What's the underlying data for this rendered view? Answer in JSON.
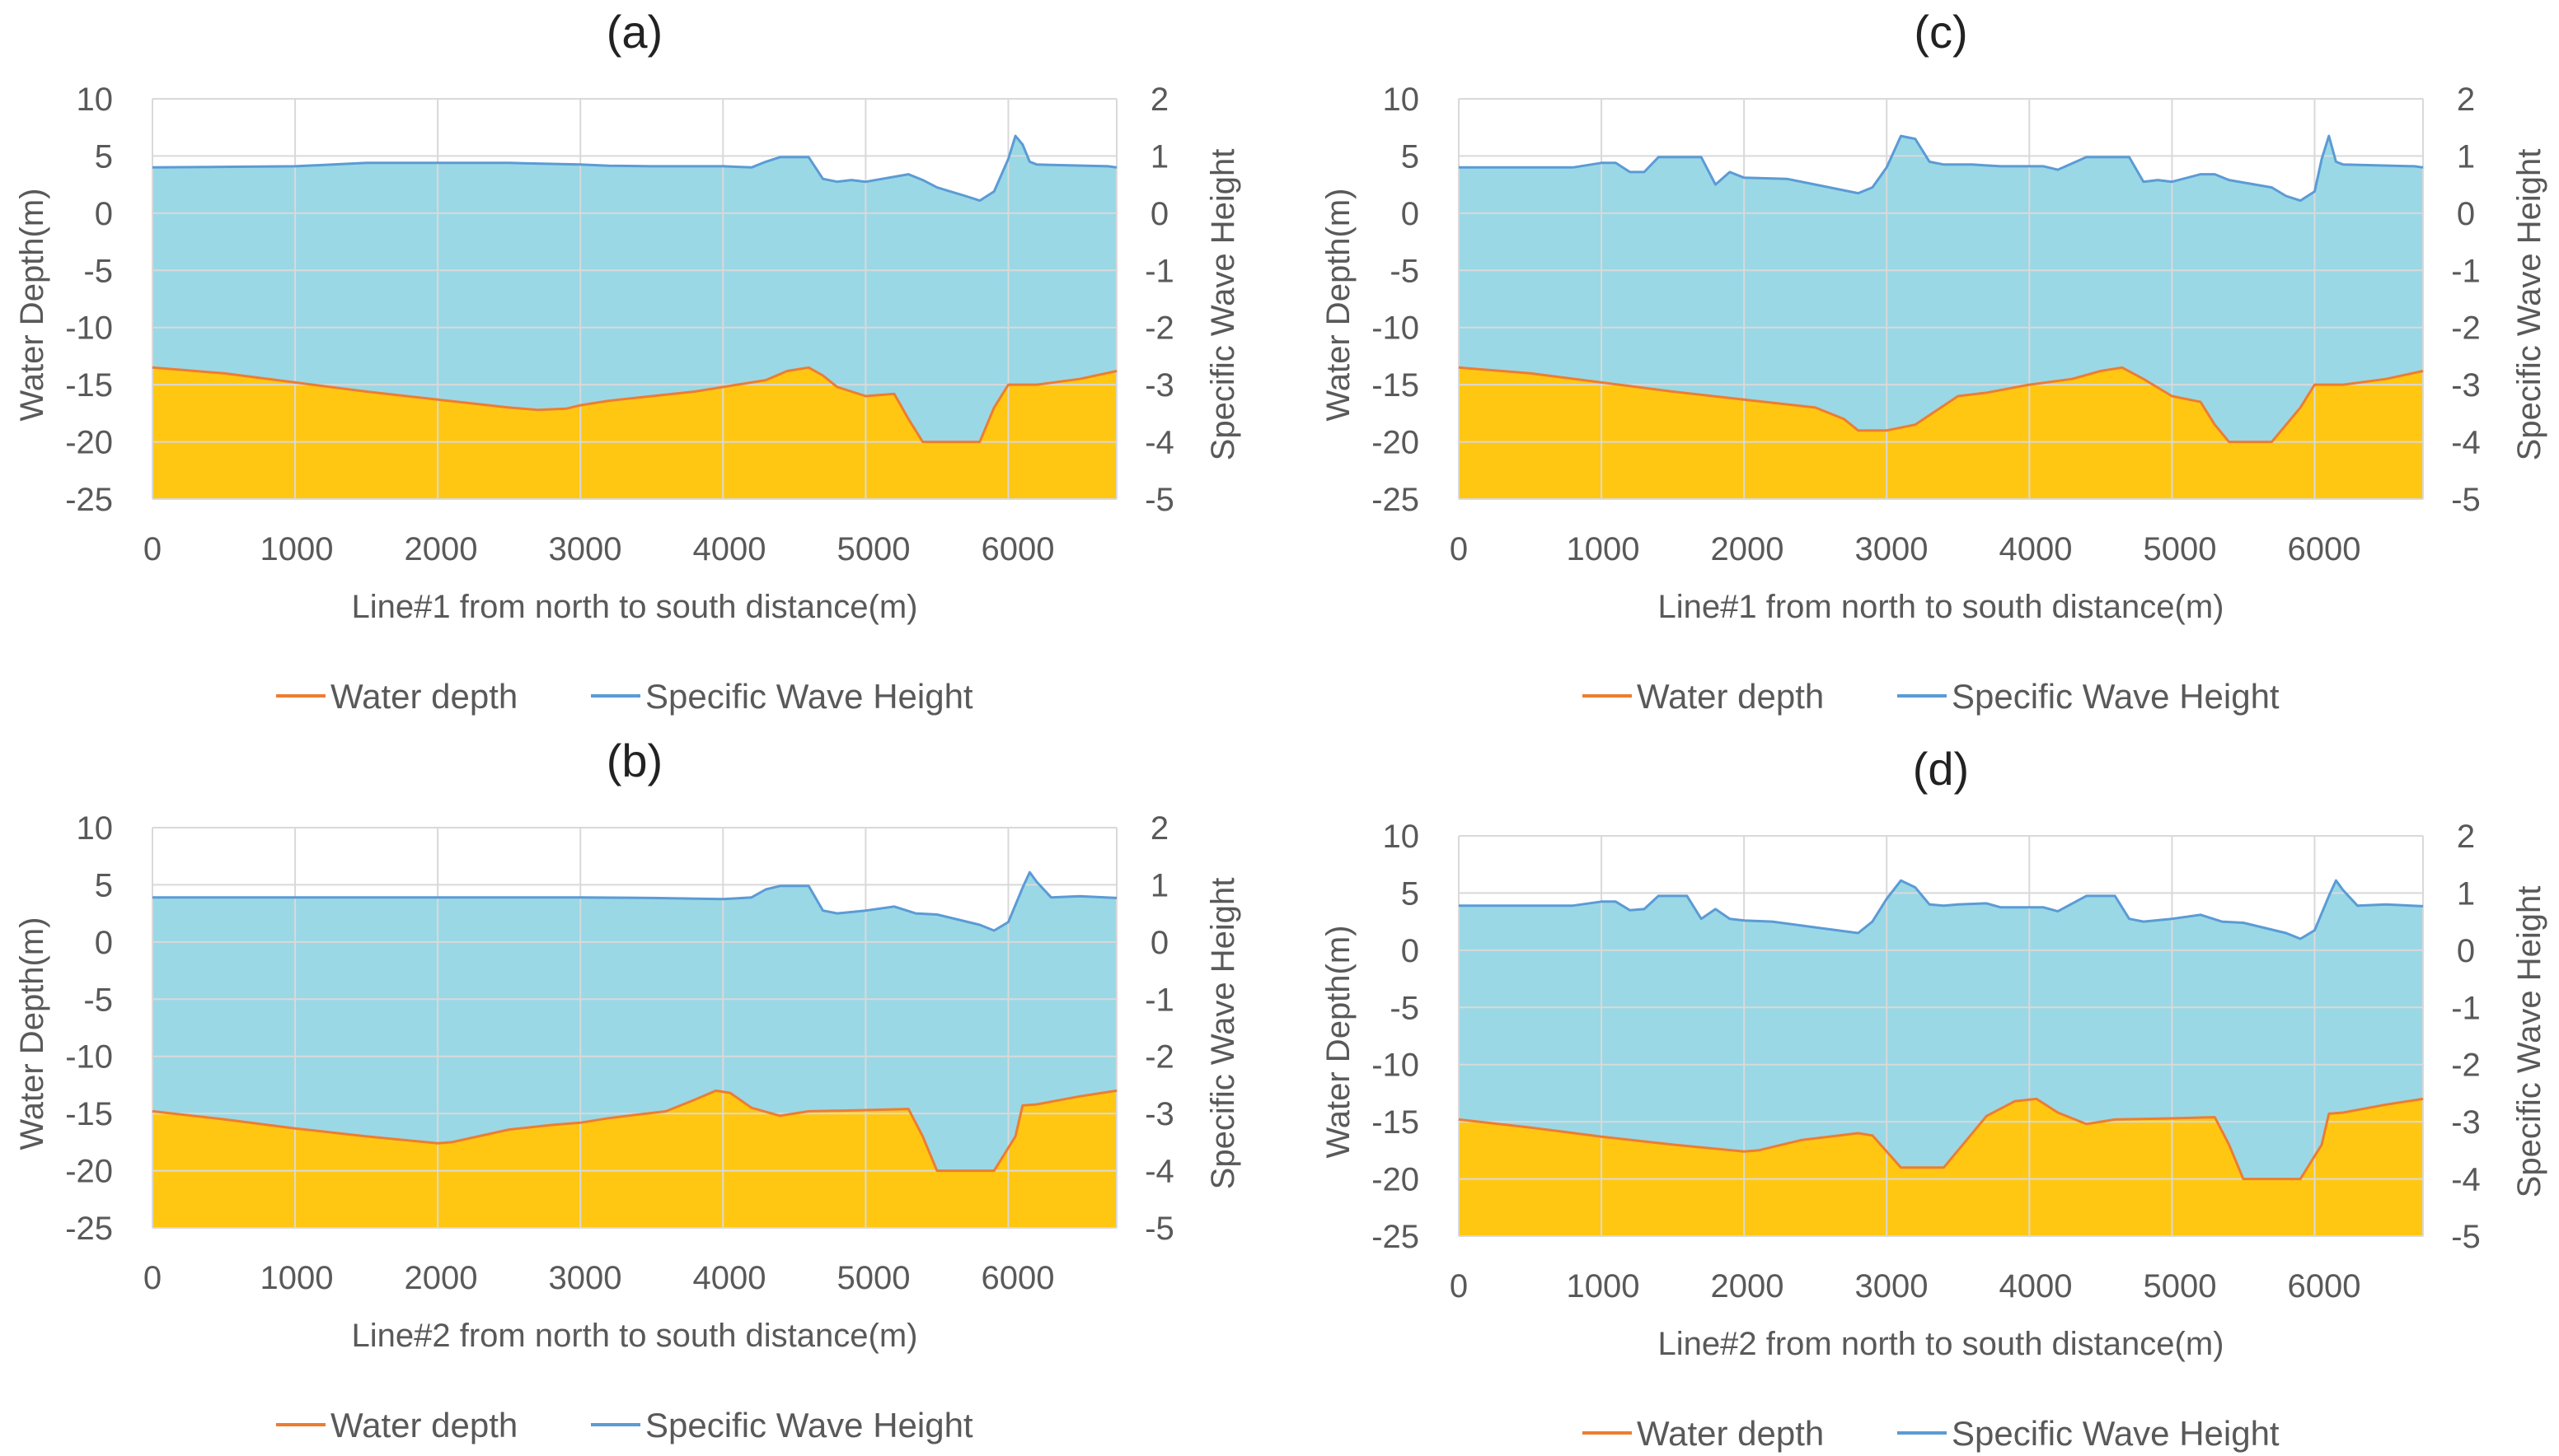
{
  "colors": {
    "water_depth_line": "#ED7D31",
    "wave_line": "#5B9BD5",
    "seabed_fill": "#FFC712",
    "water_fill": "#9AD8E6"
  },
  "chart_data": [
    {
      "type": "area",
      "panel": "(a)",
      "xlabel": "Line#1 from north to south distance(m)",
      "ylabel": "Water Depth(m)",
      "y2label": "Specific Wave Height",
      "xlim": [
        0,
        6760
      ],
      "ylim": [
        -25,
        10
      ],
      "y2lim": [
        -5,
        2
      ],
      "xticks": [
        "0",
        "1000",
        "2000",
        "3000",
        "4000",
        "5000",
        "6000"
      ],
      "yticks": [
        "10",
        "5",
        "0",
        "-5",
        "-10",
        "-15",
        "-20",
        "-25"
      ],
      "y2ticks": [
        "2",
        "1",
        "0",
        "-1",
        "-2",
        "-3",
        "-4",
        "-5"
      ],
      "grid": true,
      "legend": [
        "Water depth",
        "Specific Wave Height"
      ],
      "legend_position": "bottom",
      "series": [
        {
          "name": "Water depth",
          "axis": "left",
          "x": [
            0,
            500,
            1000,
            1500,
            2000,
            2500,
            2700,
            2900,
            3000,
            3200,
            3500,
            3800,
            4100,
            4300,
            4450,
            4600,
            4700,
            4800,
            5000,
            5200,
            5300,
            5400,
            5700,
            5800,
            5900,
            6000,
            6200,
            6500,
            6760
          ],
          "y": [
            -13.5,
            -14,
            -14.8,
            -15.6,
            -16.3,
            -17,
            -17.2,
            -17.1,
            -16.8,
            -16.4,
            -16,
            -15.6,
            -15,
            -14.6,
            -13.8,
            -13.5,
            -14.2,
            -15.2,
            -16,
            -15.8,
            -18,
            -20,
            -20,
            -20,
            -17,
            -15,
            -15,
            -14.5,
            -13.8
          ]
        },
        {
          "name": "Specific Wave Height",
          "axis": "right",
          "x": [
            0,
            1000,
            1500,
            2000,
            2500,
            3000,
            3200,
            3500,
            4000,
            4200,
            4300,
            4400,
            4600,
            4700,
            4800,
            4900,
            5000,
            5300,
            5400,
            5500,
            5700,
            5800,
            5900,
            6000,
            6050,
            6100,
            6150,
            6200,
            6700,
            6760
          ],
          "y": [
            0.8,
            0.82,
            0.88,
            0.88,
            0.88,
            0.85,
            0.83,
            0.82,
            0.82,
            0.8,
            0.9,
            0.98,
            0.98,
            0.6,
            0.55,
            0.58,
            0.55,
            0.68,
            0.58,
            0.45,
            0.3,
            0.22,
            0.38,
            0.95,
            1.35,
            1.2,
            0.9,
            0.85,
            0.82,
            0.8
          ]
        }
      ]
    },
    {
      "type": "area",
      "panel": "(b)",
      "xlabel": "Line#2 from north to south distance(m)",
      "ylabel": "Water Depth(m)",
      "y2label": "Specific Wave Height",
      "xlim": [
        0,
        6760
      ],
      "ylim": [
        -25,
        10
      ],
      "y2lim": [
        -5,
        2
      ],
      "xticks": [
        "0",
        "1000",
        "2000",
        "3000",
        "4000",
        "5000",
        "6000"
      ],
      "yticks": [
        "10",
        "5",
        "0",
        "-5",
        "-10",
        "-15",
        "-20",
        "-25"
      ],
      "y2ticks": [
        "2",
        "1",
        "0",
        "-1",
        "-2",
        "-3",
        "-4",
        "-5"
      ],
      "grid": true,
      "legend": [
        "Water depth",
        "Specific Wave Height"
      ],
      "legend_position": "bottom",
      "series": [
        {
          "name": "Water depth",
          "axis": "left",
          "x": [
            0,
            500,
            1000,
            1500,
            2000,
            2100,
            2500,
            2800,
            3000,
            3200,
            3600,
            3800,
            3950,
            4050,
            4200,
            4400,
            4600,
            5000,
            5300,
            5400,
            5500,
            5900,
            6050,
            6100,
            6200,
            6500,
            6760
          ],
          "y": [
            -14.8,
            -15.5,
            -16.3,
            -17,
            -17.6,
            -17.5,
            -16.4,
            -16,
            -15.8,
            -15.4,
            -14.8,
            -13.8,
            -13,
            -13.2,
            -14.5,
            -15.2,
            -14.8,
            -14.7,
            -14.6,
            -17,
            -20,
            -20,
            -17,
            -14.3,
            -14.2,
            -13.5,
            -13
          ]
        },
        {
          "name": "Specific Wave Height",
          "axis": "right",
          "x": [
            0,
            1000,
            2000,
            3000,
            3500,
            4000,
            4200,
            4300,
            4400,
            4600,
            4700,
            4800,
            5000,
            5200,
            5350,
            5500,
            5800,
            5900,
            6000,
            6100,
            6150,
            6200,
            6300,
            6500,
            6760
          ],
          "y": [
            0.78,
            0.78,
            0.78,
            0.78,
            0.77,
            0.75,
            0.78,
            0.92,
            0.98,
            0.98,
            0.55,
            0.5,
            0.55,
            0.62,
            0.5,
            0.48,
            0.3,
            0.2,
            0.35,
            0.95,
            1.22,
            1.05,
            0.78,
            0.8,
            0.77
          ]
        }
      ]
    },
    {
      "type": "area",
      "panel": "(c)",
      "xlabel": "Line#1 from north to south distance(m)",
      "ylabel": "Water Depth(m)",
      "y2label": "Specific Wave Height",
      "xlim": [
        0,
        6760
      ],
      "ylim": [
        -25,
        10
      ],
      "y2lim": [
        -5,
        2
      ],
      "xticks": [
        "0",
        "1000",
        "2000",
        "3000",
        "4000",
        "5000",
        "6000"
      ],
      "yticks": [
        "10",
        "5",
        "0",
        "-5",
        "-10",
        "-15",
        "-20",
        "-25"
      ],
      "y2ticks": [
        "2",
        "1",
        "0",
        "-1",
        "-2",
        "-3",
        "-4",
        "-5"
      ],
      "grid": true,
      "legend": [
        "Water depth",
        "Specific Wave Height"
      ],
      "legend_position": "bottom",
      "series": [
        {
          "name": "Water depth",
          "axis": "left",
          "x": [
            0,
            500,
            1000,
            1500,
            2000,
            2500,
            2700,
            2800,
            3000,
            3200,
            3500,
            3700,
            4000,
            4300,
            4500,
            4650,
            4800,
            5000,
            5200,
            5300,
            5400,
            5700,
            5900,
            6000,
            6200,
            6500,
            6760
          ],
          "y": [
            -13.5,
            -14,
            -14.8,
            -15.6,
            -16.3,
            -17,
            -18,
            -19,
            -19,
            -18.5,
            -16,
            -15.7,
            -15,
            -14.5,
            -13.8,
            -13.5,
            -14.5,
            -16,
            -16.5,
            -18.5,
            -20,
            -20,
            -17,
            -15,
            -15,
            -14.5,
            -13.8
          ]
        },
        {
          "name": "Specific Wave Height",
          "axis": "right",
          "x": [
            0,
            500,
            800,
            1000,
            1100,
            1200,
            1300,
            1400,
            1500,
            1700,
            1800,
            1900,
            2000,
            2300,
            2500,
            2800,
            2900,
            3000,
            3100,
            3200,
            3300,
            3400,
            3600,
            3800,
            4100,
            4200,
            4400,
            4600,
            4700,
            4800,
            4900,
            5000,
            5200,
            5300,
            5400,
            5700,
            5800,
            5900,
            6000,
            6050,
            6100,
            6150,
            6200,
            6700,
            6760
          ],
          "y": [
            0.8,
            0.8,
            0.8,
            0.88,
            0.88,
            0.72,
            0.72,
            0.98,
            0.98,
            0.98,
            0.5,
            0.72,
            0.62,
            0.6,
            0.5,
            0.35,
            0.45,
            0.8,
            1.35,
            1.3,
            0.9,
            0.85,
            0.85,
            0.82,
            0.82,
            0.76,
            0.98,
            0.98,
            0.98,
            0.55,
            0.58,
            0.55,
            0.68,
            0.68,
            0.58,
            0.45,
            0.3,
            0.22,
            0.38,
            0.95,
            1.35,
            0.9,
            0.85,
            0.82,
            0.8
          ]
        }
      ]
    },
    {
      "type": "area",
      "panel": "(d)",
      "xlabel": "Line#2 from north to south distance(m)",
      "ylabel": "Water Depth(m)",
      "y2label": "Specific Wave Height",
      "xlim": [
        0,
        6760
      ],
      "ylim": [
        -25,
        10
      ],
      "y2lim": [
        -5,
        2
      ],
      "xticks": [
        "0",
        "1000",
        "2000",
        "3000",
        "4000",
        "5000",
        "6000"
      ],
      "yticks": [
        "10",
        "5",
        "0",
        "-5",
        "-10",
        "-15",
        "-20",
        "-25"
      ],
      "y2ticks": [
        "2",
        "1",
        "0",
        "-1",
        "-2",
        "-3",
        "-4",
        "-5"
      ],
      "grid": true,
      "legend": [
        "Water depth",
        "Specific Wave Height"
      ],
      "legend_position": "bottom",
      "series": [
        {
          "name": "Water depth",
          "axis": "left",
          "x": [
            0,
            500,
            1000,
            1500,
            2000,
            2100,
            2400,
            2800,
            2900,
            3100,
            3400,
            3500,
            3700,
            3900,
            4050,
            4200,
            4400,
            4600,
            5000,
            5300,
            5400,
            5500,
            5900,
            6050,
            6100,
            6200,
            6500,
            6760
          ],
          "y": [
            -14.8,
            -15.5,
            -16.3,
            -17,
            -17.6,
            -17.5,
            -16.6,
            -16,
            -16.2,
            -19,
            -19,
            -17.5,
            -14.5,
            -13.2,
            -13,
            -14.2,
            -15.2,
            -14.8,
            -14.7,
            -14.6,
            -17,
            -20,
            -20,
            -17,
            -14.3,
            -14.2,
            -13.5,
            -13
          ]
        },
        {
          "name": "Specific Wave Height",
          "axis": "right",
          "x": [
            0,
            800,
            1000,
            1100,
            1200,
            1300,
            1400,
            1500,
            1600,
            1700,
            1800,
            1900,
            2000,
            2200,
            2500,
            2800,
            2900,
            3000,
            3100,
            3200,
            3300,
            3400,
            3500,
            3700,
            3800,
            4100,
            4200,
            4400,
            4600,
            4700,
            4800,
            5000,
            5200,
            5350,
            5500,
            5800,
            5900,
            6000,
            6100,
            6150,
            6200,
            6300,
            6500,
            6760
          ],
          "y": [
            0.78,
            0.78,
            0.85,
            0.85,
            0.7,
            0.72,
            0.95,
            0.95,
            0.95,
            0.55,
            0.72,
            0.55,
            0.52,
            0.5,
            0.4,
            0.3,
            0.5,
            0.9,
            1.22,
            1.1,
            0.8,
            0.78,
            0.8,
            0.82,
            0.75,
            0.75,
            0.68,
            0.95,
            0.95,
            0.55,
            0.5,
            0.55,
            0.62,
            0.5,
            0.48,
            0.3,
            0.2,
            0.35,
            0.95,
            1.22,
            1.05,
            0.78,
            0.8,
            0.77
          ]
        }
      ]
    }
  ]
}
